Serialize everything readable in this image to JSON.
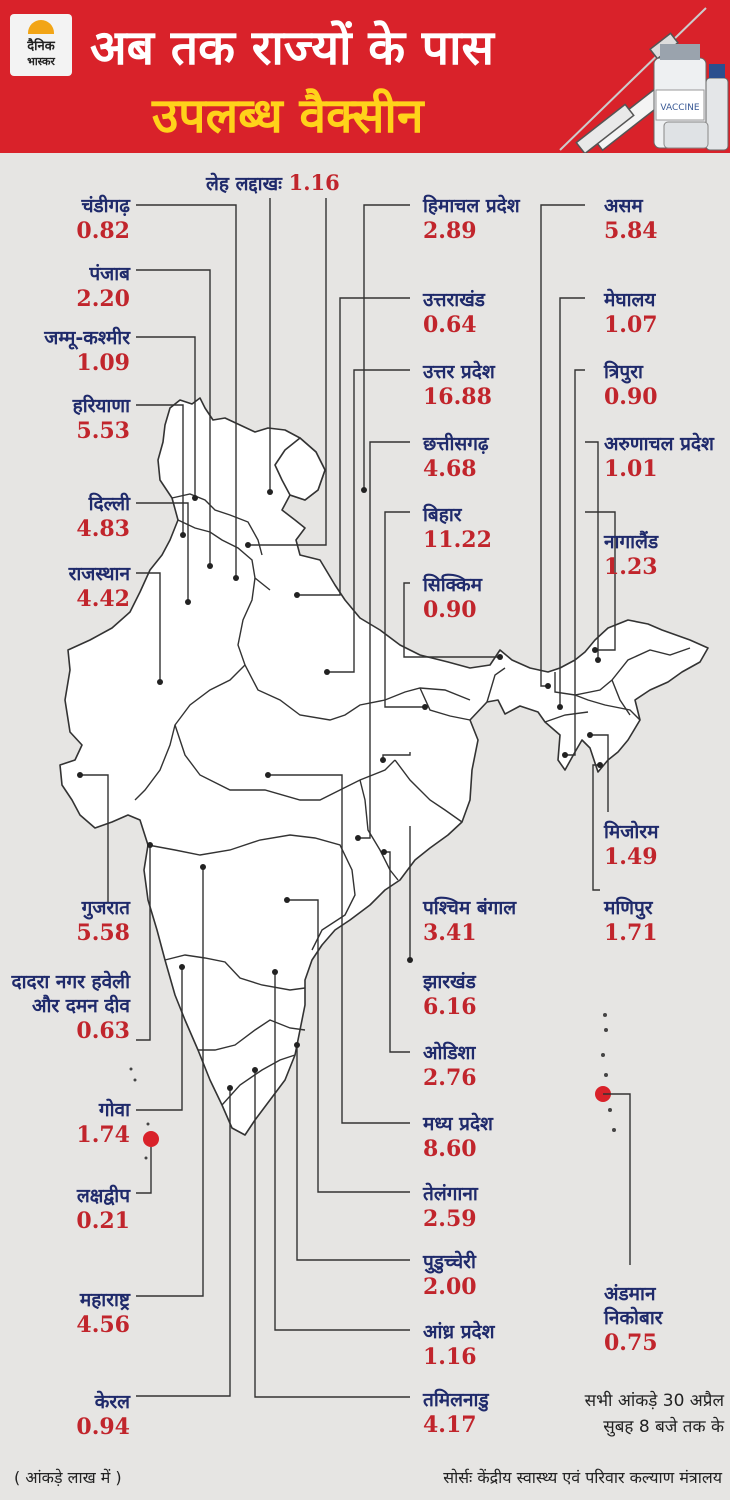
{
  "logo": {
    "line1": "दैनिक",
    "line2": "भास्कर"
  },
  "title": {
    "line1": "अब तक राज्यों के पास",
    "line2": "उपलब्ध वैक्सीन"
  },
  "vaccine_label": "VACCINE",
  "leh": {
    "name": "लेह लद्दाखः",
    "value": "1.16"
  },
  "states": [
    {
      "name": "चंडीगढ़",
      "value": "0.82"
    },
    {
      "name": "पंजाब",
      "value": "2.20"
    },
    {
      "name": "जम्मू-कश्मीर",
      "value": "1.09"
    },
    {
      "name": "हरियाणा",
      "value": "5.53"
    },
    {
      "name": "दिल्ली",
      "value": "4.83"
    },
    {
      "name": "राजस्थान",
      "value": "4.42"
    },
    {
      "name": "गुजरात",
      "value": "5.58"
    },
    {
      "name": "दादरा नगर हवेली और दमन दीव",
      "value": "0.63"
    },
    {
      "name": "गोवा",
      "value": "1.74"
    },
    {
      "name": "लक्षद्वीप",
      "value": "0.21"
    },
    {
      "name": "महाराष्ट्र",
      "value": "4.56"
    },
    {
      "name": "केरल",
      "value": "0.94"
    },
    {
      "name": "हिमाचल प्रदेश",
      "value": "2.89"
    },
    {
      "name": "उत्तराखंड",
      "value": "0.64"
    },
    {
      "name": "उत्तर प्रदेश",
      "value": "16.88"
    },
    {
      "name": "छत्तीसगढ़",
      "value": "4.68"
    },
    {
      "name": "बिहार",
      "value": "11.22"
    },
    {
      "name": "सिक्किम",
      "value": "0.90"
    },
    {
      "name": "पश्चिम बंगाल",
      "value": "3.41"
    },
    {
      "name": "झारखंड",
      "value": "6.16"
    },
    {
      "name": "ओडिशा",
      "value": "2.76"
    },
    {
      "name": "मध्य प्रदेश",
      "value": "8.60"
    },
    {
      "name": "तेलंगाना",
      "value": "2.59"
    },
    {
      "name": "पुडुच्चेरी",
      "value": "2.00"
    },
    {
      "name": "आंध्र प्रदेश",
      "value": "1.16"
    },
    {
      "name": "तमिलनाडु",
      "value": "4.17"
    },
    {
      "name": "असम",
      "value": "5.84"
    },
    {
      "name": "मेघालय",
      "value": "1.07"
    },
    {
      "name": "त्रिपुरा",
      "value": "0.90"
    },
    {
      "name": "अरुणाचल प्रदेश",
      "value": "1.01"
    },
    {
      "name": "नागालैंड",
      "value": "1.23"
    },
    {
      "name": "मिजोरम",
      "value": "1.49"
    },
    {
      "name": "मणिपुर",
      "value": "1.71"
    },
    {
      "name": "अंडमान निकोबार",
      "value": "0.75"
    }
  ],
  "note": {
    "line1": "सभी आंकड़े 30 अप्रैल",
    "line2": "सुबह 8 बजे तक के"
  },
  "unit_note": "( आंकड़े लाख में )",
  "source": "सोर्सः केंद्रीय स्वास्थ्य एवं परिवार कल्याण मंत्रालय",
  "colors": {
    "header": "#d9222a",
    "title_highlight": "#ffd21a",
    "state_name": "#1f2a6b",
    "value": "#c1252c"
  }
}
